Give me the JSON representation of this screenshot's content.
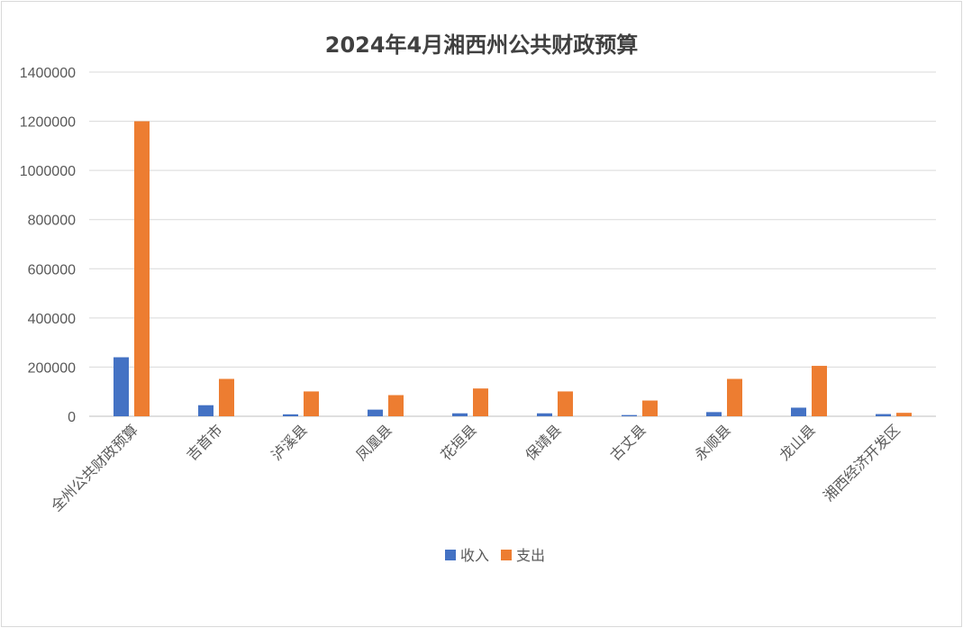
{
  "chart_data": {
    "type": "bar",
    "title": "2024年4月湘西州公共财政预算",
    "categories": [
      "全州公共财政预算",
      "吉首市",
      "泸溪县",
      "凤凰县",
      "花垣县",
      "保靖县",
      "古丈县",
      "永顺县",
      "龙山县",
      "湘西经济开发区"
    ],
    "series": [
      {
        "name": "收入",
        "color": "#4472C4",
        "values": [
          240000,
          45000,
          8000,
          27000,
          12000,
          12000,
          5000,
          17000,
          35000,
          9000
        ]
      },
      {
        "name": "支出",
        "color": "#ED7D31",
        "values": [
          1200000,
          152000,
          101000,
          86000,
          113000,
          101000,
          64000,
          152000,
          205000,
          14000
        ]
      }
    ],
    "ylim": [
      0,
      1400000
    ],
    "yticks": [
      "0",
      "200000",
      "400000",
      "600000",
      "800000",
      "1000000",
      "1200000",
      "1400000"
    ],
    "grid": true,
    "legend_position": "bottom"
  }
}
